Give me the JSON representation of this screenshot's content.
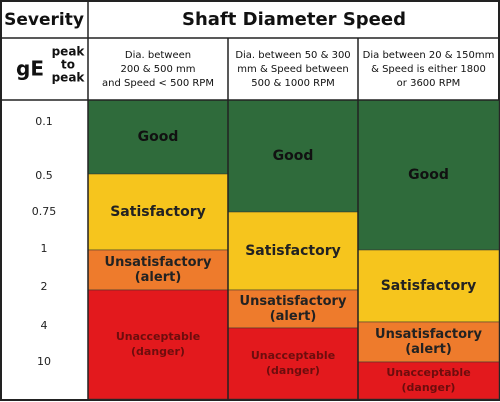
{
  "header": {
    "severity": "Severity",
    "title": "Shaft Diameter Speed",
    "unit": "gE",
    "unit_note": [
      "peak",
      "to",
      "peak"
    ]
  },
  "columns": [
    {
      "header": [
        "Dia. between",
        "200 & 500 mm",
        "and Speed < 500 RPM"
      ],
      "zones": [
        {
          "label": [
            "Good"
          ]
        },
        {
          "label": [
            "Satisfactory"
          ]
        },
        {
          "label": [
            "Unsatisfactory",
            "(alert)"
          ]
        },
        {
          "label": [
            "Unacceptable",
            "(danger)"
          ]
        }
      ]
    },
    {
      "header": [
        "Dia. between 50 & 300",
        "mm & Speed between",
        "500 & 1000 RPM"
      ],
      "zones": [
        {
          "label": [
            "Good"
          ]
        },
        {
          "label": [
            "Satisfactory"
          ]
        },
        {
          "label": [
            "Unsatisfactory",
            "(alert)"
          ]
        },
        {
          "label": [
            "Unacceptable",
            "(danger)"
          ]
        }
      ]
    },
    {
      "header": [
        "Dia between 20 & 150mm",
        "& Speed is either 1800",
        "or 3600 RPM"
      ],
      "zones": [
        {
          "label": [
            "Good"
          ]
        },
        {
          "label": [
            "Satisfactory"
          ]
        },
        {
          "label": [
            "Unsatisfactory",
            "(alert)"
          ]
        },
        {
          "label": [
            "Unacceptable",
            "(danger)"
          ]
        }
      ]
    }
  ],
  "levels": [
    "0.1",
    "0.5",
    "0.75",
    "1",
    "2",
    "4",
    "10"
  ]
}
